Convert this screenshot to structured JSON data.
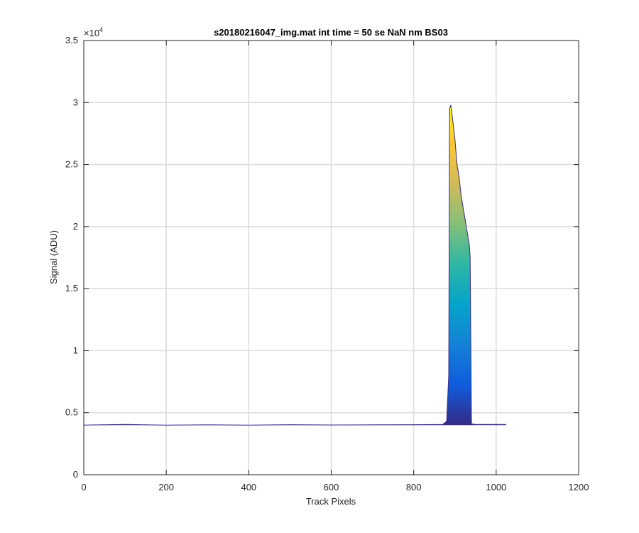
{
  "chart_data": {
    "type": "area",
    "title": "s20180216047_img.mat int time = 50 se  NaN nm BS03",
    "xlabel": "Track Pixels",
    "ylabel": "Signal (ADU)",
    "xlim": [
      0,
      1200
    ],
    "ylim": [
      0,
      35000
    ],
    "x_ticks": [
      0,
      200,
      400,
      600,
      800,
      1000,
      1200
    ],
    "x_tick_labels": [
      "0",
      "200",
      "400",
      "600",
      "800",
      "1000",
      "1200"
    ],
    "y_ticks": [
      0,
      5000,
      10000,
      15000,
      20000,
      25000,
      30000,
      35000
    ],
    "y_tick_labels": [
      "0",
      "0.5",
      "1",
      "1.5",
      "2",
      "2.5",
      "3",
      "3.5"
    ],
    "y_exponent_label": "×10",
    "y_exponent_power": "4",
    "grid": true,
    "colormap": [
      "#352a87",
      "#0f5cdd",
      "#1481d6",
      "#06a4ca",
      "#2eb7a4",
      "#87bf77",
      "#d1bb59",
      "#fec832",
      "#f9fb0e"
    ],
    "series": [
      {
        "x": [
          0,
          100,
          200,
          300,
          400,
          500,
          600,
          700,
          800,
          870,
          880,
          885,
          887,
          890,
          895,
          900,
          905,
          910,
          915,
          920,
          925,
          930,
          935,
          937,
          940,
          950,
          1000,
          1024
        ],
        "values": [
          4000,
          4050,
          4000,
          4020,
          4000,
          4030,
          4010,
          4020,
          4030,
          4050,
          4300,
          8000,
          29500,
          29800,
          28500,
          27000,
          25000,
          24000,
          22500,
          21500,
          20500,
          19500,
          18500,
          17500,
          4100,
          4050,
          4050,
          4050
        ]
      }
    ]
  }
}
